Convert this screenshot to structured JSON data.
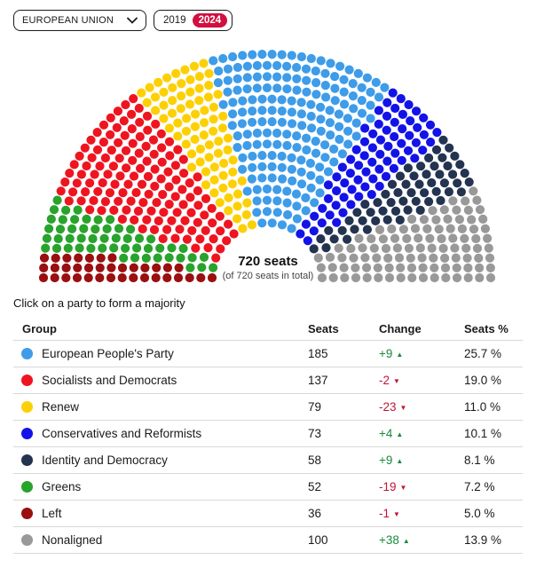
{
  "controls": {
    "region_select": {
      "value": "EUROPEAN UNION"
    },
    "years": {
      "y2019": "2019",
      "y2024": "2024"
    }
  },
  "hemicycle": {
    "center_label": "720 seats",
    "center_sublabel": "(of 720 seats in total)"
  },
  "caption": "Click on a party to form a majority",
  "table": {
    "headers": {
      "group": "Group",
      "seats": "Seats",
      "change": "Change",
      "pct": "Seats %"
    },
    "rows": [
      {
        "color": "#3e9ce9",
        "group": "European People's Party",
        "seats": "185",
        "change": "+9",
        "arrow": "▲",
        "trend": "#1a8a3c",
        "pct": "25.7 %"
      },
      {
        "color": "#ee1520",
        "group": "Socialists and Democrats",
        "seats": "137",
        "change": "-2",
        "arrow": "▼",
        "trend": "#c01535",
        "pct": "19.0 %"
      },
      {
        "color": "#fdd005",
        "group": "Renew",
        "seats": "79",
        "change": "-23",
        "arrow": "▼",
        "trend": "#c01535",
        "pct": "11.0 %"
      },
      {
        "color": "#1313e8",
        "group": "Conservatives and Reformists",
        "seats": "73",
        "change": "+4",
        "arrow": "▲",
        "trend": "#1a8a3c",
        "pct": "10.1 %"
      },
      {
        "color": "#233350",
        "group": "Identity and Democracy",
        "seats": "58",
        "change": "+9",
        "arrow": "▲",
        "trend": "#1a8a3c",
        "pct": "8.1 %"
      },
      {
        "color": "#28a32c",
        "group": "Greens",
        "seats": "52",
        "change": "-19",
        "arrow": "▼",
        "trend": "#c01535",
        "pct": "7.2 %"
      },
      {
        "color": "#9a0f10",
        "group": "Left",
        "seats": "36",
        "change": "-1",
        "arrow": "▼",
        "trend": "#c01535",
        "pct": "5.0 %"
      },
      {
        "color": "#999999",
        "group": "Nonaligned",
        "seats": "100",
        "change": "+38",
        "arrow": "▲",
        "trend": "#1a8a3c",
        "pct": "13.9 %"
      }
    ]
  },
  "chart_data": {
    "type": "pie",
    "variant": "parliament-hemicycle",
    "title": "720 seats",
    "subtitle": "(of 720 seats in total)",
    "total_seats": 720,
    "seat_rows": 16,
    "legend_position": "table-below",
    "series": [
      {
        "name": "Left",
        "seats": 36,
        "change": -1,
        "pct": 5.0,
        "color": "#9a0f10"
      },
      {
        "name": "Greens",
        "seats": 52,
        "change": -19,
        "pct": 7.2,
        "color": "#28a32c"
      },
      {
        "name": "Socialists and Democrats",
        "seats": 137,
        "change": -2,
        "pct": 19.0,
        "color": "#ee1520"
      },
      {
        "name": "Renew",
        "seats": 79,
        "change": -23,
        "pct": 11.0,
        "color": "#fdd005"
      },
      {
        "name": "European People's Party",
        "seats": 185,
        "change": 9,
        "pct": 25.7,
        "color": "#3e9ce9"
      },
      {
        "name": "Conservatives and Reformists",
        "seats": 73,
        "change": 4,
        "pct": 10.1,
        "color": "#1313e8"
      },
      {
        "name": "Identity and Democracy",
        "seats": 58,
        "change": 9,
        "pct": 8.1,
        "color": "#233350"
      },
      {
        "name": "Nonaligned",
        "seats": 100,
        "change": 38,
        "pct": 13.9,
        "color": "#999999"
      }
    ]
  }
}
